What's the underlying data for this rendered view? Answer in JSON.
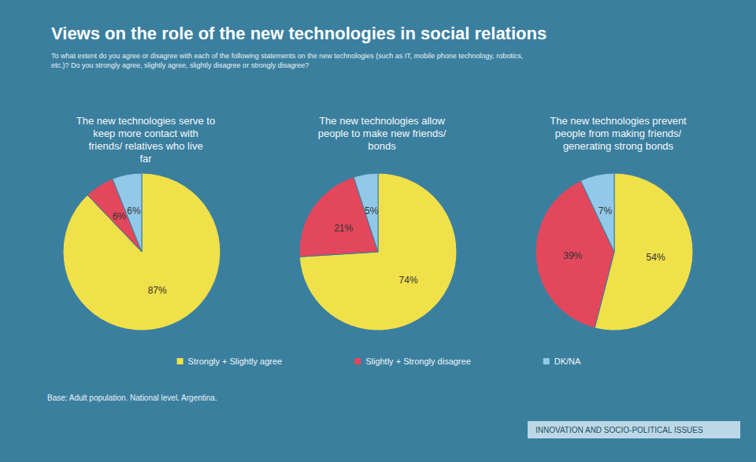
{
  "title": "Views on the role of the new technologies in social relations",
  "subtitle": "To what extent do you agree or disagree with each of the following statements on the new technologies (such as IT, mobile phone technology, robotics, etc.)? Do you strongly agree, slightly agree, slightly disagree or strongly disagree?",
  "legend": "bottom",
  "source": "Base: Adult population. National level. Argentina.",
  "section": "INNOVATION AND SOCIO-POLITICAL ISSUES",
  "chart_data": [
    {
      "type": "pie",
      "title": "The new technologies serve to keep more contact with friends/ relatives who live far",
      "categories": [
        "Strongly + Slightly agree",
        "Slightly + Strongly disagree",
        "DK/NA"
      ],
      "values": [
        87,
        6,
        6
      ],
      "value_labels": [
        "87%",
        "6%",
        "6%"
      ],
      "colors": [
        "#f0e04a",
        "#e2475c",
        "#92c9e8"
      ],
      "data_labels": true
    },
    {
      "type": "pie",
      "title": "The new technologies allow people to make new friends/ bonds",
      "categories": [
        "Strongly + Slightly agree",
        "Slightly + Strongly disagree",
        "DK/NA"
      ],
      "values": [
        74,
        21,
        5
      ],
      "value_labels": [
        "74%",
        "21%",
        "5%"
      ],
      "colors": [
        "#f0e04a",
        "#e2475c",
        "#92c9e8"
      ],
      "data_labels": true
    },
    {
      "type": "pie",
      "title": "The new technologies prevent people from making friends/ generating strong bonds",
      "categories": [
        "Strongly + Slightly agree",
        "Slightly + Strongly disagree",
        "DK/NA"
      ],
      "values": [
        54,
        39,
        7
      ],
      "value_labels": [
        "54%",
        "39%",
        "7%"
      ],
      "colors": [
        "#f0e04a",
        "#e2475c",
        "#92c9e8"
      ],
      "data_labels": true
    }
  ]
}
